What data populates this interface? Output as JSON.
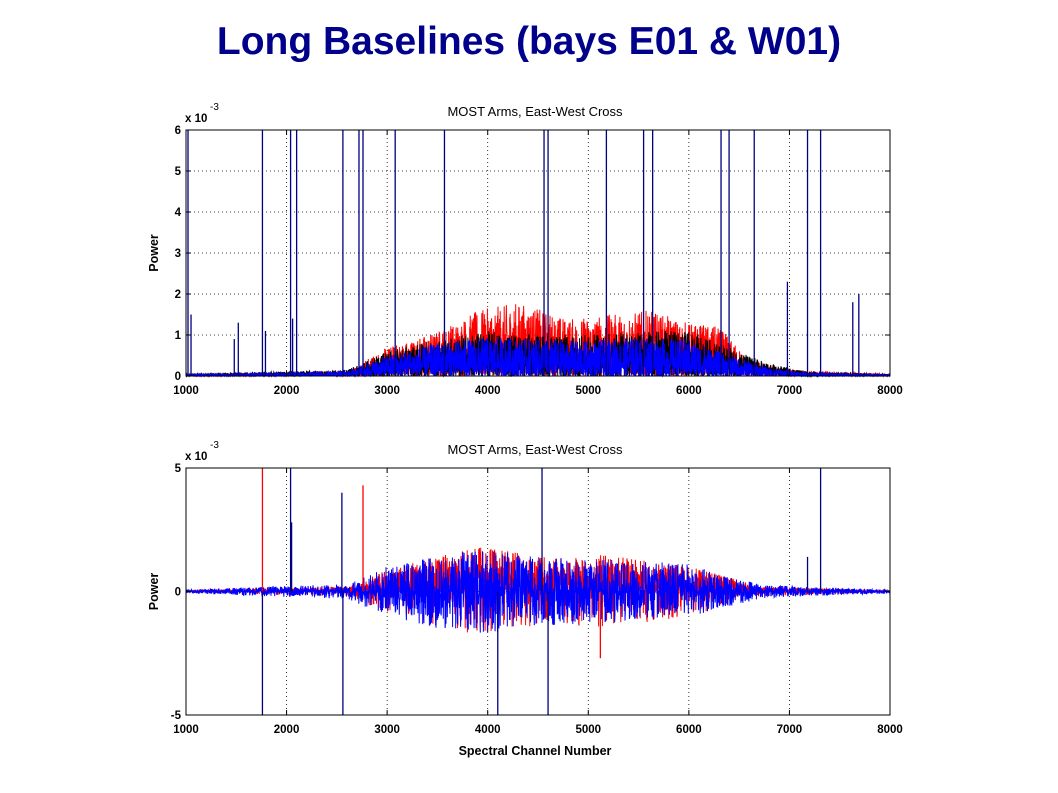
{
  "page": {
    "title": "Long Baselines (bays E01 & W01)",
    "title_color": "#00008b"
  },
  "colors": {
    "red": "#ff0000",
    "blue": "#0000ff",
    "black": "#000000",
    "navy": "#000080"
  },
  "chart_data": [
    {
      "type": "line",
      "title": "MOST Arms, East-West Cross",
      "xlabel": "",
      "ylabel": "Power",
      "scale_label": "x 10",
      "scale_exp": "-3",
      "xlim": [
        1000,
        8000
      ],
      "ylim": [
        0,
        6
      ],
      "xticks": [
        "1000",
        "2000",
        "3000",
        "4000",
        "5000",
        "6000",
        "7000",
        "8000"
      ],
      "yticks": [
        "0",
        "1",
        "2",
        "3",
        "4",
        "5",
        "6"
      ],
      "grid": true,
      "series": [
        {
          "color": "#ff0000",
          "envelope": [
            [
              1000,
              0.05
            ],
            [
              2600,
              0.12
            ],
            [
              3000,
              0.7
            ],
            [
              3500,
              1.1
            ],
            [
              3900,
              1.6
            ],
            [
              4300,
              1.8
            ],
            [
              4800,
              1.4
            ],
            [
              5200,
              1.5
            ],
            [
              5600,
              1.6
            ],
            [
              6000,
              1.3
            ],
            [
              6300,
              1.2
            ],
            [
              6600,
              0.4
            ],
            [
              7000,
              0.15
            ],
            [
              8000,
              0.05
            ]
          ]
        },
        {
          "color": "#000000",
          "envelope": [
            [
              1000,
              0.05
            ],
            [
              2600,
              0.15
            ],
            [
              3000,
              0.6
            ],
            [
              3500,
              0.9
            ],
            [
              4000,
              1.1
            ],
            [
              4500,
              1.0
            ],
            [
              5000,
              1.0
            ],
            [
              5500,
              1.1
            ],
            [
              6000,
              1.1
            ],
            [
              6400,
              0.7
            ],
            [
              6800,
              0.3
            ],
            [
              7200,
              0.1
            ],
            [
              8000,
              0.05
            ]
          ]
        },
        {
          "color": "#0000ff",
          "envelope": [
            [
              1000,
              0.05
            ],
            [
              2600,
              0.12
            ],
            [
              3000,
              0.5
            ],
            [
              3500,
              0.8
            ],
            [
              4000,
              0.95
            ],
            [
              4500,
              0.9
            ],
            [
              5000,
              0.85
            ],
            [
              5500,
              0.95
            ],
            [
              6000,
              0.9
            ],
            [
              6400,
              0.5
            ],
            [
              6800,
              0.2
            ],
            [
              7200,
              0.08
            ],
            [
              8000,
              0.04
            ]
          ]
        }
      ],
      "spikes": [
        {
          "x": 1020,
          "y": 6.0
        },
        {
          "x": 1050,
          "y": 1.5
        },
        {
          "x": 1480,
          "y": 0.9
        },
        {
          "x": 1520,
          "y": 1.3
        },
        {
          "x": 1760,
          "y": 6.0
        },
        {
          "x": 1790,
          "y": 1.1
        },
        {
          "x": 2040,
          "y": 6.0
        },
        {
          "x": 2060,
          "y": 1.4
        },
        {
          "x": 2100,
          "y": 6.0
        },
        {
          "x": 2560,
          "y": 6.0
        },
        {
          "x": 2720,
          "y": 6.0
        },
        {
          "x": 2760,
          "y": 6.0
        },
        {
          "x": 3080,
          "y": 6.0
        },
        {
          "x": 3570,
          "y": 6.0
        },
        {
          "x": 4560,
          "y": 6.0
        },
        {
          "x": 4600,
          "y": 6.0
        },
        {
          "x": 5180,
          "y": 6.0
        },
        {
          "x": 5550,
          "y": 6.0
        },
        {
          "x": 5640,
          "y": 6.0
        },
        {
          "x": 6320,
          "y": 6.0
        },
        {
          "x": 6400,
          "y": 6.0
        },
        {
          "x": 6650,
          "y": 6.0
        },
        {
          "x": 6980,
          "y": 2.3
        },
        {
          "x": 7180,
          "y": 6.0
        },
        {
          "x": 7310,
          "y": 6.0
        },
        {
          "x": 7630,
          "y": 1.8
        },
        {
          "x": 7690,
          "y": 2.0
        }
      ]
    },
    {
      "type": "line",
      "title": "MOST Arms, East-West Cross",
      "xlabel": "Spectral Channel Number",
      "ylabel": "Power",
      "scale_label": "x 10",
      "scale_exp": "-3",
      "xlim": [
        1000,
        8000
      ],
      "ylim": [
        -5,
        5
      ],
      "xticks": [
        "1000",
        "2000",
        "3000",
        "4000",
        "5000",
        "6000",
        "7000",
        "8000"
      ],
      "yticks": [
        "-5",
        "0",
        "5"
      ],
      "grid": true,
      "series": [
        {
          "color": "#ff0000",
          "envelope": [
            [
              1000,
              0.05
            ],
            [
              2600,
              0.2
            ],
            [
              3000,
              0.9
            ],
            [
              3500,
              1.4
            ],
            [
              3900,
              1.8
            ],
            [
              4300,
              1.6
            ],
            [
              4800,
              1.3
            ],
            [
              5100,
              1.5
            ],
            [
              5500,
              1.3
            ],
            [
              6000,
              1.0
            ],
            [
              6400,
              0.6
            ],
            [
              6700,
              0.2
            ],
            [
              8000,
              0.05
            ]
          ]
        },
        {
          "color": "#0000ff",
          "envelope": [
            [
              1000,
              0.08
            ],
            [
              2600,
              0.3
            ],
            [
              3000,
              1.0
            ],
            [
              3500,
              1.5
            ],
            [
              4000,
              1.7
            ],
            [
              4500,
              1.4
            ],
            [
              5000,
              1.3
            ],
            [
              5500,
              1.3
            ],
            [
              6000,
              1.1
            ],
            [
              6400,
              0.6
            ],
            [
              6800,
              0.25
            ],
            [
              8000,
              0.08
            ]
          ]
        }
      ],
      "spikes": [
        {
          "x": 1760,
          "y": 5.0,
          "color": "#ff0000"
        },
        {
          "x": 1760,
          "y": -5.0
        },
        {
          "x": 2040,
          "y": 5.0
        },
        {
          "x": 2050,
          "y": 2.8
        },
        {
          "x": 2550,
          "y": 4.0
        },
        {
          "x": 2560,
          "y": -5.0
        },
        {
          "x": 2760,
          "y": 4.3,
          "color": "#ff0000"
        },
        {
          "x": 4100,
          "y": -5.0
        },
        {
          "x": 4540,
          "y": 5.0
        },
        {
          "x": 4600,
          "y": -5.0
        },
        {
          "x": 5120,
          "y": -2.7,
          "color": "#ff0000"
        },
        {
          "x": 7180,
          "y": 1.4
        },
        {
          "x": 7310,
          "y": 5.0
        }
      ]
    }
  ]
}
